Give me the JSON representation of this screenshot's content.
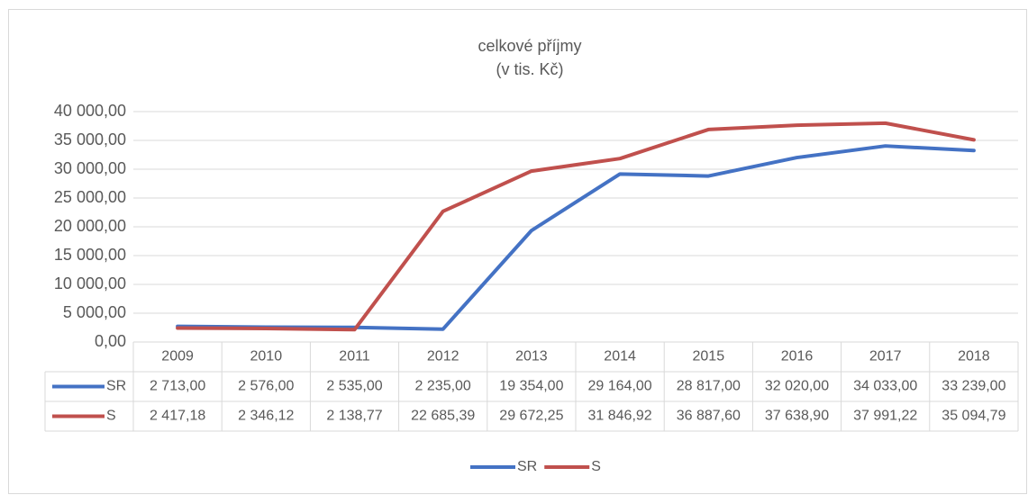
{
  "chart_data": {
    "type": "line",
    "title": "celkové příjmy",
    "subtitle": "(v tis. Kč)",
    "categories": [
      "2009",
      "2010",
      "2011",
      "2012",
      "2013",
      "2014",
      "2015",
      "2016",
      "2017",
      "2018"
    ],
    "series": [
      {
        "name": "SR",
        "color": "#4472c4",
        "values": [
          2713,
          2576,
          2535,
          2235,
          19354,
          29164,
          28817,
          32020,
          34033,
          33239
        ],
        "value_labels": [
          "2 713,00",
          "2 576,00",
          "2 535,00",
          "2 235,00",
          "19 354,00",
          "29 164,00",
          "28 817,00",
          "32 020,00",
          "34 033,00",
          "33 239,00"
        ]
      },
      {
        "name": "S",
        "color": "#c0504d",
        "values": [
          2417.18,
          2346.12,
          2138.77,
          22685.39,
          29672.25,
          31846.92,
          36887.6,
          37638.9,
          37991.22,
          35094.79
        ],
        "value_labels": [
          "2 417,18",
          "2 346,12",
          "2 138,77",
          "22 685,39",
          "29 672,25",
          "31 846,92",
          "36 887,60",
          "37 638,90",
          "37 991,22",
          "35 094,79"
        ]
      }
    ],
    "ylim": [
      0,
      40000
    ],
    "yticks": [
      {
        "value": 0,
        "label": "0,00"
      },
      {
        "value": 5000,
        "label": "5 000,00"
      },
      {
        "value": 10000,
        "label": "10 000,00"
      },
      {
        "value": 15000,
        "label": "15 000,00"
      },
      {
        "value": 20000,
        "label": "20 000,00"
      },
      {
        "value": 25000,
        "label": "25 000,00"
      },
      {
        "value": 30000,
        "label": "30 000,00"
      },
      {
        "value": 35000,
        "label": "35 000,00"
      },
      {
        "value": 40000,
        "label": "40 000,00"
      }
    ],
    "grid": true,
    "legend": "bottom"
  }
}
